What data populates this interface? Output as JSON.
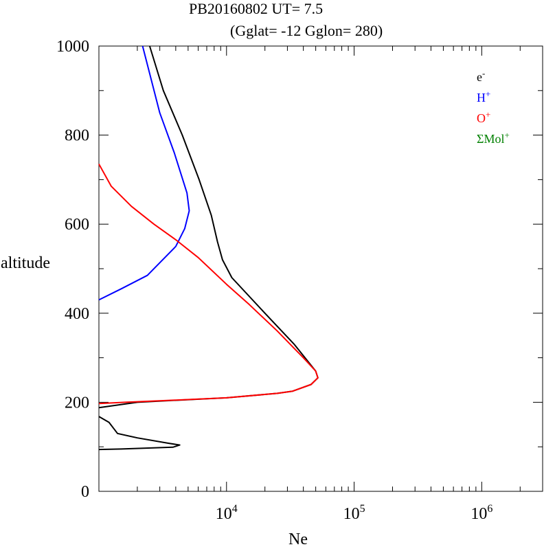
{
  "chart_data": {
    "type": "line",
    "title_line1": "PB20160802   UT=  7.5",
    "title_line2": "(Gglat= -12   Gglon=  280)",
    "xlabel": "Ne",
    "ylabel": "altitude",
    "xscale": "log",
    "xlim": [
      1000,
      3000000
    ],
    "ylim": [
      0,
      1000
    ],
    "xticks": [
      {
        "base": "10",
        "exp": "4",
        "value": 10000
      },
      {
        "base": "10",
        "exp": "5",
        "value": 100000
      },
      {
        "base": "10",
        "exp": "6",
        "value": 1000000
      }
    ],
    "yticks": [
      {
        "label": "0",
        "value": 0
      },
      {
        "label": "200",
        "value": 200
      },
      {
        "label": "400",
        "value": 400
      },
      {
        "label": "600",
        "value": 600
      },
      {
        "label": "800",
        "value": 800
      },
      {
        "label": "1000",
        "value": 1000
      }
    ],
    "legend_position": "top-right",
    "series": [
      {
        "base": "e",
        "sup": "-",
        "color": "#000000",
        "segments": [
          [
            [
              2500,
              1000
            ],
            [
              3200,
              900
            ],
            [
              4500,
              800
            ],
            [
              6100,
              700
            ],
            [
              7600,
              620
            ],
            [
              8500,
              560
            ],
            [
              9300,
              520
            ],
            [
              11000,
              480
            ],
            [
              20000,
              400
            ],
            [
              34000,
              330
            ],
            [
              50000,
              270
            ],
            [
              52000,
              255
            ],
            [
              46000,
              240
            ],
            [
              33000,
              225
            ],
            [
              25000,
              220
            ],
            [
              10000,
              210
            ],
            [
              4300,
              205
            ],
            [
              2000,
              200
            ],
            [
              1000,
              188
            ]
          ],
          [
            [
              1000,
              168
            ],
            [
              1200,
              155
            ],
            [
              1400,
              130
            ],
            [
              2000,
              120
            ],
            [
              3500,
              108
            ],
            [
              4300,
              104
            ],
            [
              3800,
              99
            ],
            [
              1500,
              95
            ],
            [
              1000,
              94
            ]
          ]
        ]
      },
      {
        "base": "H",
        "sup": "+",
        "color": "#0000ff",
        "segments": [
          [
            [
              2200,
              1000
            ],
            [
              3000,
              850
            ],
            [
              3900,
              760
            ],
            [
              4900,
              670
            ],
            [
              5100,
              630
            ],
            [
              4700,
              590
            ],
            [
              4000,
              550
            ],
            [
              2400,
              485
            ],
            [
              1500,
              455
            ],
            [
              1000,
              430
            ]
          ]
        ]
      },
      {
        "base": "O",
        "sup": "+",
        "color": "#ff0000",
        "segments": [
          [
            [
              1000,
              735
            ],
            [
              1250,
              685
            ],
            [
              1800,
              640
            ],
            [
              2700,
              600
            ],
            [
              4000,
              565
            ],
            [
              6000,
              525
            ],
            [
              10000,
              465
            ],
            [
              15000,
              420
            ],
            [
              25000,
              360
            ],
            [
              40000,
              300
            ],
            [
              50000,
              270
            ],
            [
              52000,
              255
            ],
            [
              46000,
              240
            ],
            [
              33000,
              225
            ],
            [
              25000,
              220
            ],
            [
              10000,
              210
            ],
            [
              4000,
              205
            ],
            [
              1600,
              200
            ],
            [
              1000,
              197
            ]
          ]
        ]
      },
      {
        "base": "ΣMol",
        "sup": "+",
        "color": "#008000",
        "segments": []
      }
    ]
  }
}
